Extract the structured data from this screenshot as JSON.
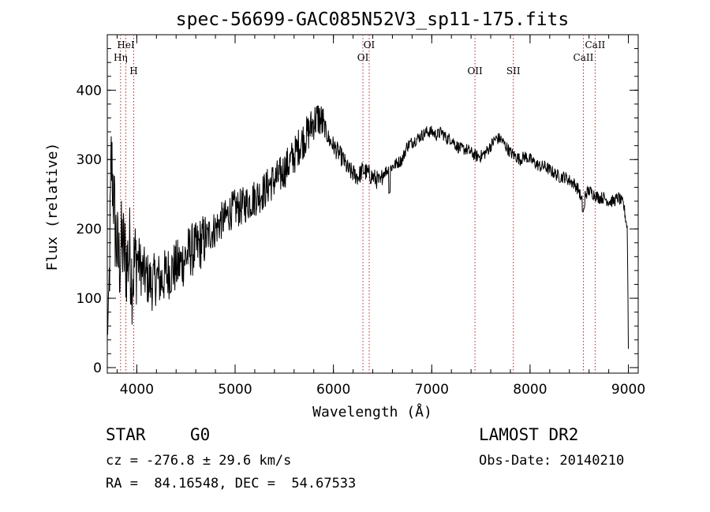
{
  "chart_data": {
    "type": "line",
    "title": "spec-56699-GAC085N52V3_sp11-175.fits",
    "xlabel": "Wavelength (Å)",
    "ylabel": "Flux (relative)",
    "xlim": [
      3700,
      9100
    ],
    "ylim": [
      -8,
      480
    ],
    "xticks": [
      4000,
      5000,
      6000,
      7000,
      8000,
      9000
    ],
    "yticks": [
      0,
      100,
      200,
      300,
      400
    ],
    "minor_x_step": 200,
    "minor_y_step": 20,
    "grid": false,
    "series": [
      {
        "x": [
          3700,
          3720,
          3740,
          3760,
          3780,
          3800,
          3820,
          3850,
          3880,
          3900,
          3930,
          3950,
          3980,
          4000,
          4050,
          4100,
          4150,
          4200,
          4250,
          4300,
          4350,
          4400,
          4450,
          4500,
          4550,
          4600,
          4650,
          4700,
          4750,
          4800,
          4850,
          4900,
          4950,
          5000,
          5050,
          5100,
          5150,
          5200,
          5250,
          5300,
          5350,
          5400,
          5450,
          5500,
          5550,
          5600,
          5650,
          5700,
          5750,
          5800,
          5850,
          5900,
          5950,
          6000,
          6050,
          6100,
          6150,
          6200,
          6250,
          6300,
          6350,
          6400,
          6450,
          6480,
          6500,
          6550,
          6600,
          6650,
          6700,
          6750,
          6800,
          6850,
          6900,
          6950,
          7000,
          7050,
          7100,
          7150,
          7200,
          7250,
          7300,
          7350,
          7400,
          7450,
          7500,
          7550,
          7600,
          7650,
          7700,
          7750,
          7800,
          7850,
          7900,
          7950,
          8000,
          8050,
          8100,
          8150,
          8200,
          8250,
          8300,
          8350,
          8400,
          8450,
          8500,
          8520,
          8540,
          8560,
          8600,
          8650,
          8700,
          8750,
          8800,
          8850,
          8900,
          8950,
          8990,
          9000
        ],
        "y": [
          40,
          120,
          300,
          260,
          200,
          170,
          150,
          180,
          160,
          150,
          170,
          130,
          150,
          160,
          140,
          130,
          120,
          130,
          125,
          135,
          140,
          145,
          150,
          160,
          170,
          170,
          180,
          185,
          195,
          200,
          210,
          215,
          225,
          230,
          230,
          235,
          240,
          245,
          250,
          255,
          265,
          270,
          275,
          285,
          295,
          305,
          320,
          330,
          340,
          355,
          360,
          350,
          330,
          320,
          310,
          300,
          285,
          280,
          275,
          285,
          280,
          275,
          270,
          265,
          280,
          285,
          290,
          295,
          300,
          320,
          325,
          330,
          335,
          340,
          340,
          335,
          340,
          330,
          330,
          320,
          315,
          315,
          310,
          305,
          305,
          310,
          320,
          330,
          330,
          320,
          310,
          305,
          300,
          305,
          300,
          295,
          290,
          290,
          285,
          280,
          275,
          275,
          270,
          265,
          255,
          240,
          240,
          250,
          255,
          250,
          245,
          245,
          240,
          240,
          245,
          235,
          200,
          30
        ]
      }
    ],
    "lines": [
      {
        "x": 3835,
        "label": "Hη"
      },
      {
        "x": 3889,
        "label": "HeI"
      },
      {
        "x": 3969,
        "label": "H"
      },
      {
        "x": 6300,
        "label": "OI"
      },
      {
        "x": 6364,
        "label": "OI"
      },
      {
        "x": 7440,
        "label": "OII"
      },
      {
        "x": 7830,
        "label": "SII"
      },
      {
        "x": 8542,
        "label": "CaII"
      },
      {
        "x": 8662,
        "label": "CaII"
      }
    ],
    "colors": {
      "spectrum": "#000000",
      "line_markers": "#a52a2a"
    }
  },
  "info": {
    "object_type": "STAR",
    "subclass": "G0",
    "survey": "LAMOST DR2",
    "cz": "cz = -276.8 ± 29.6 km/s",
    "obs_date": "Obs-Date: 20140210",
    "coords": "RA =  84.16548, DEC =  54.67533"
  }
}
